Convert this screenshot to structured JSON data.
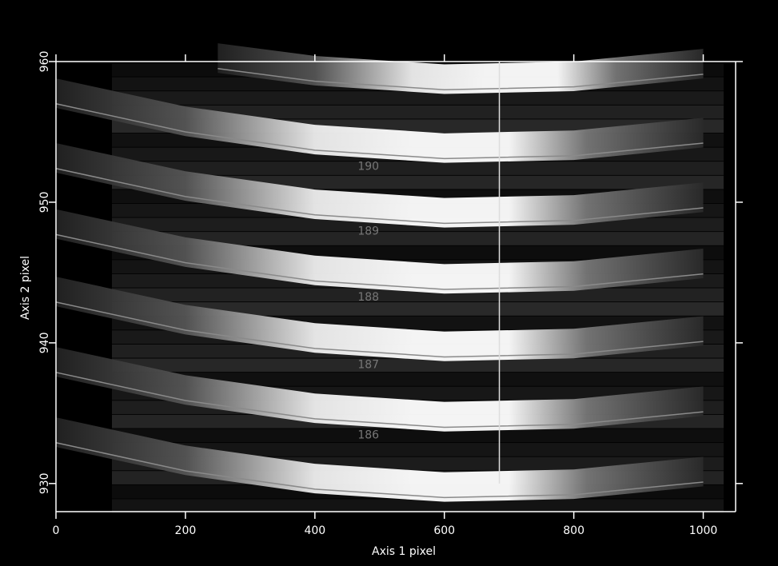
{
  "chart_data": {
    "type": "trace",
    "x_label": "Axis 1 pixel",
    "y_label": "Axis 2 pixel",
    "xlim": [
      0,
      1050
    ],
    "ylim": [
      928,
      960
    ],
    "xticks": [
      0,
      200,
      400,
      600,
      800,
      1000
    ],
    "yticks": [
      930,
      940,
      950,
      960
    ],
    "vline_x": 685,
    "line_color": "#8a8a8a",
    "traces": [
      {
        "x": [
          250,
          400,
          600,
          800,
          1000
        ],
        "y": [
          959.5,
          958.6,
          958.0,
          958.2,
          959.1
        ]
      },
      {
        "label": "190",
        "x": [
          0,
          200,
          400,
          600,
          800,
          1000
        ],
        "y": [
          957.0,
          955.0,
          953.7,
          953.1,
          953.3,
          954.2
        ]
      },
      {
        "label": "189",
        "x": [
          0,
          200,
          400,
          600,
          800,
          1000
        ],
        "y": [
          952.4,
          950.4,
          949.1,
          948.5,
          948.7,
          949.6
        ]
      },
      {
        "label": "188",
        "x": [
          0,
          200,
          400,
          600,
          800,
          1000
        ],
        "y": [
          947.7,
          945.7,
          944.4,
          943.8,
          944.0,
          944.9
        ]
      },
      {
        "label": "187",
        "x": [
          0,
          200,
          400,
          600,
          800,
          1000
        ],
        "y": [
          942.9,
          940.9,
          939.6,
          939.0,
          939.2,
          940.1
        ]
      },
      {
        "label": "186",
        "x": [
          0,
          200,
          400,
          600,
          800,
          1000
        ],
        "y": [
          937.9,
          935.9,
          934.6,
          934.0,
          934.2,
          935.1
        ]
      },
      {
        "x": [
          0,
          200,
          400,
          600,
          800,
          1000
        ],
        "y": [
          932.9,
          930.9,
          929.6,
          929.0,
          929.2,
          930.1
        ]
      }
    ]
  }
}
